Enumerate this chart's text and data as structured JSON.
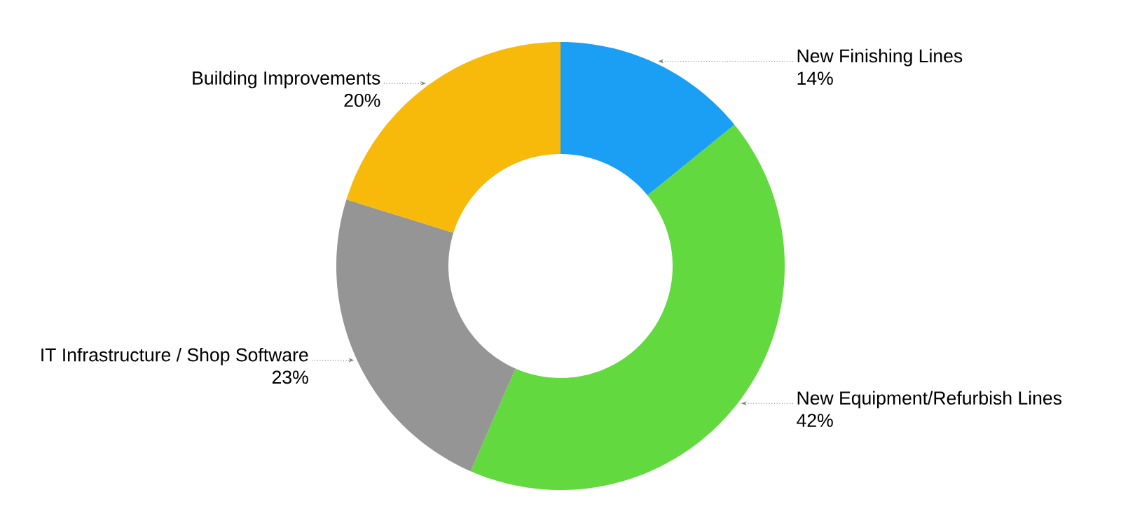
{
  "chart_data": {
    "type": "donut",
    "categories": [
      "New Finishing Lines",
      "New Equipment/Refurbish Lines",
      "IT Infrastructure / Shop Software",
      "Building Improvements"
    ],
    "values": [
      14,
      42,
      23,
      20
    ],
    "value_labels": [
      "14%",
      "42%",
      "23%",
      "20%"
    ],
    "colors": [
      "#1a9ff5",
      "#62d93f",
      "#959595",
      "#f7b90a"
    ]
  }
}
